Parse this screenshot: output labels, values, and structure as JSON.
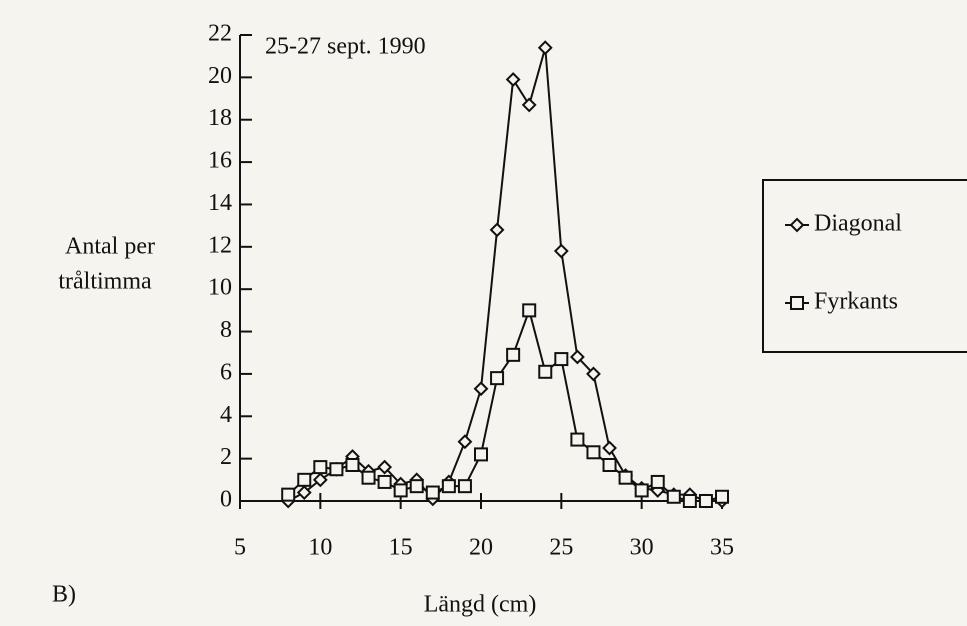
{
  "chart_data": {
    "type": "line",
    "annotation": "25-27 sept. 1990",
    "ylabel": [
      "Antal per",
      "tråltimma"
    ],
    "xlabel": "Längd (cm)",
    "panel": "B)",
    "x": [
      8,
      9,
      10,
      11,
      12,
      13,
      14,
      15,
      16,
      17,
      18,
      19,
      20,
      21,
      22,
      23,
      24,
      25,
      26,
      27,
      28,
      29,
      30,
      31,
      32,
      33,
      34,
      35
    ],
    "series": [
      {
        "name": "Diagonal",
        "marker": "diamond",
        "color": "#111111",
        "values": [
          0,
          0.4,
          1.0,
          1.5,
          2.1,
          1.4,
          1.6,
          0.8,
          1.0,
          0.1,
          0.9,
          2.8,
          5.3,
          12.8,
          19.9,
          18.7,
          21.4,
          11.8,
          6.8,
          6.0,
          2.5,
          1.2,
          0.6,
          0.5,
          0.3,
          0.3,
          0,
          0
        ]
      },
      {
        "name": "Fyrkants",
        "marker": "square",
        "color": "#111111",
        "values": [
          0.3,
          1.0,
          1.6,
          1.5,
          1.7,
          1.1,
          0.9,
          0.5,
          0.7,
          0.4,
          0.7,
          0.7,
          2.2,
          5.8,
          6.9,
          9.0,
          6.1,
          6.7,
          2.9,
          2.3,
          1.7,
          1.1,
          0.5,
          0.9,
          0.2,
          0,
          0,
          0.2
        ]
      }
    ],
    "xlim": [
      5,
      35
    ],
    "xticks": [
      5,
      10,
      15,
      20,
      25,
      30,
      35
    ],
    "ylim": [
      0,
      22
    ],
    "yticks": [
      0,
      2,
      4,
      6,
      8,
      10,
      12,
      14,
      16,
      18,
      20,
      22
    ],
    "legend": "right"
  }
}
